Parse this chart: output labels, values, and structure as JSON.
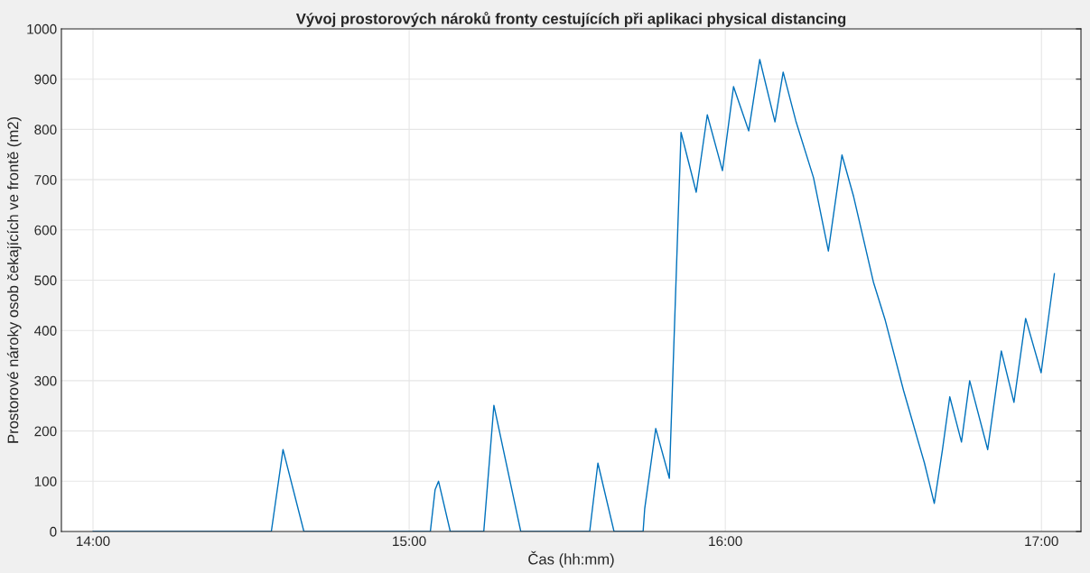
{
  "chart_data": {
    "type": "line",
    "title": "Vývoj prostorových nároků fronty cestujících při aplikaci physical distancing",
    "xlabel": "Čas (hh:mm)",
    "ylabel": "Prostorové nároky osob čekajících ve frontě (m2)",
    "xlim": [
      13.9,
      17.125
    ],
    "xticks": [
      {
        "value": 14,
        "label": "14:00"
      },
      {
        "value": 15,
        "label": "15:00"
      },
      {
        "value": 16,
        "label": "16:00"
      },
      {
        "value": 17,
        "label": "17:00"
      }
    ],
    "ylim": [
      0,
      1000
    ],
    "yticks": [
      0,
      100,
      200,
      300,
      400,
      500,
      600,
      700,
      800,
      900,
      1000
    ],
    "grid": true,
    "marker": "none",
    "line_style": "solid",
    "series": [
      {
        "color": "#0072bd",
        "x": [
          14.0,
          14.564,
          14.601,
          14.667,
          15.067,
          15.082,
          15.093,
          15.13,
          15.236,
          15.268,
          15.353,
          15.571,
          15.597,
          15.648,
          15.74,
          15.745,
          15.78,
          15.823,
          15.86,
          15.908,
          15.943,
          15.991,
          16.026,
          16.074,
          16.109,
          16.157,
          16.183,
          16.223,
          16.279,
          16.326,
          16.369,
          16.406,
          16.469,
          16.506,
          16.564,
          16.592,
          16.63,
          16.661,
          16.687,
          16.71,
          16.747,
          16.773,
          16.83,
          16.873,
          16.913,
          16.95,
          16.999,
          17.041
        ],
        "values": [
          0,
          0,
          163,
          0,
          0,
          83,
          100,
          0,
          0,
          251,
          0,
          0,
          136,
          0,
          0,
          45,
          205,
          106,
          794,
          675,
          829,
          718,
          885,
          797,
          939,
          815,
          914,
          817,
          704,
          558,
          749,
          666,
          495,
          420,
          280,
          219,
          136,
          56,
          163,
          268,
          178,
          300,
          163,
          359,
          257,
          424,
          316,
          513
        ]
      }
    ]
  }
}
